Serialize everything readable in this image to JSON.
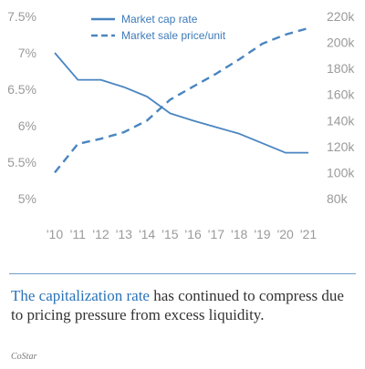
{
  "chart_data": {
    "type": "line",
    "categories": [
      "'10",
      "'11",
      "'12",
      "'13",
      "'14",
      "'15",
      "'16",
      "'17",
      "'18",
      "'19",
      "'20",
      "'21"
    ],
    "series": [
      {
        "name": "Market cap rate",
        "axis": "left",
        "style": "solid",
        "color": "#4a85c0",
        "values": [
          7.0,
          6.63,
          6.63,
          6.53,
          6.4,
          6.17,
          6.07,
          5.98,
          5.89,
          5.76,
          5.63,
          5.63
        ]
      },
      {
        "name": "Market sale price/unit",
        "axis": "right",
        "style": "dashed",
        "color": "#4a85c0",
        "values": [
          100,
          122,
          126,
          131,
          140,
          156,
          166,
          176,
          187,
          199,
          206,
          211
        ]
      }
    ],
    "y_left": {
      "ylim": [
        5.0,
        7.5
      ],
      "ticks": [
        7.5,
        7.0,
        6.5,
        6.0,
        5.5,
        5.0
      ],
      "tick_labels": [
        "7.5%",
        "7%",
        "6.5%",
        "6%",
        "5.5%",
        "5%"
      ]
    },
    "y_right": {
      "ylim": [
        80,
        220
      ],
      "ticks": [
        220,
        200,
        180,
        160,
        140,
        120,
        100,
        80
      ],
      "tick_labels": [
        "220k",
        "200k",
        "180k",
        "160k",
        "140k",
        "120k",
        "100k",
        "80k"
      ]
    },
    "grid": false,
    "legend": "top-center"
  },
  "caption": {
    "lead": "The capitalization rate",
    "rest": " has continued to compress due to pricing pressure from excess liquidity."
  },
  "source": "CoStar",
  "colors": {
    "line": "#4a85c0",
    "caption_lead": "#2a73b8",
    "rule": "#6d9fcc",
    "ticks": "#9a9a9a"
  }
}
